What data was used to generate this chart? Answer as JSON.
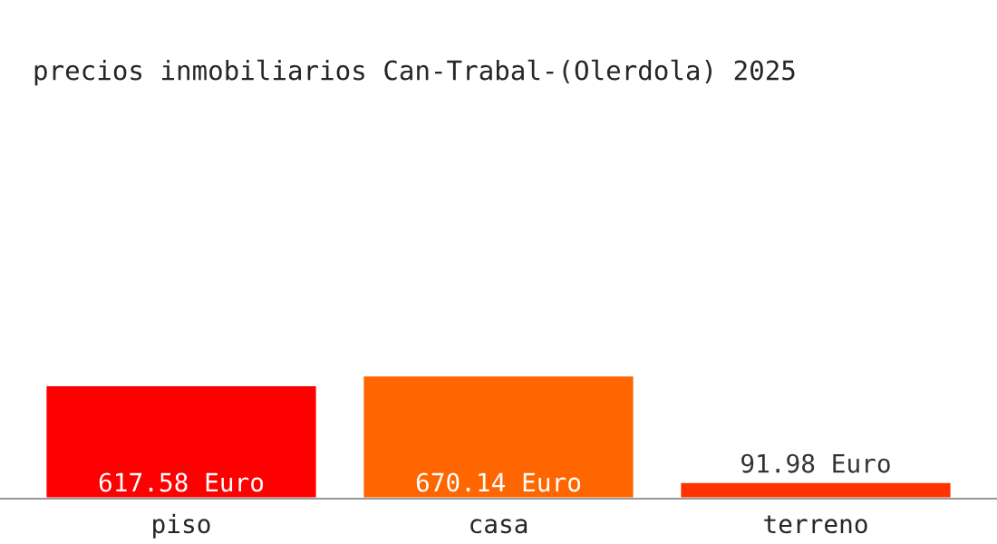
{
  "chart_data": {
    "type": "bar",
    "title": "precios inmobiliarios Can-Trabal-(Olerdola) 2025",
    "categories": [
      "piso",
      "casa",
      "terreno"
    ],
    "values": [
      617.58,
      670.14,
      91.98
    ],
    "colors": [
      "#ff0000",
      "#ff6600",
      "#ff3300"
    ],
    "value_labels": [
      "617.58 Euro",
      "670.14 Euro",
      "91.98 Euro"
    ],
    "grid": false,
    "legend": false
  }
}
